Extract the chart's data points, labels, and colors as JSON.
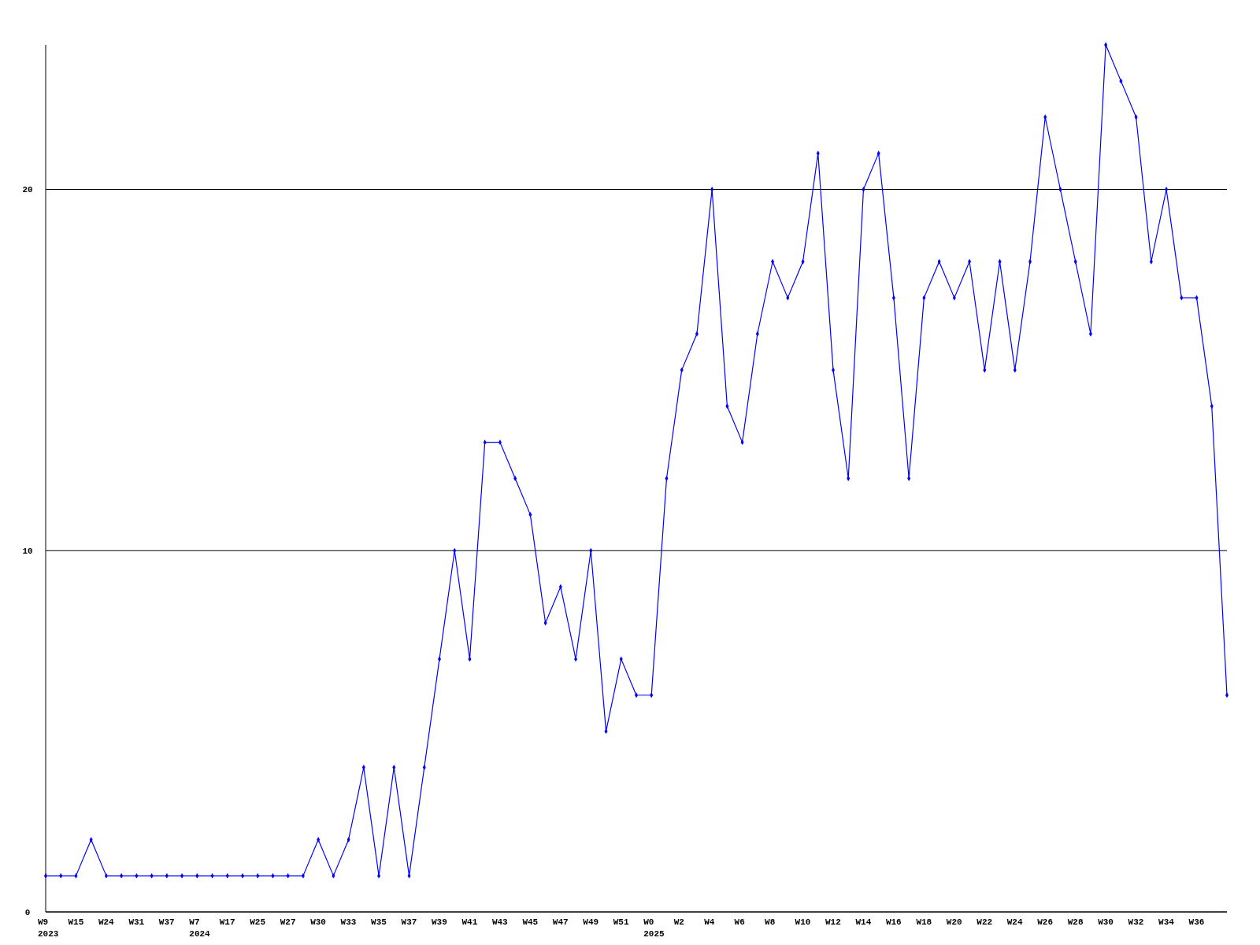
{
  "chart_data": {
    "type": "line",
    "categories": [
      "W9\n2023",
      null,
      "W15",
      null,
      "W24",
      null,
      "W31",
      null,
      "W37",
      null,
      "W7\n2024",
      null,
      "W17",
      null,
      "W25",
      null,
      "W27",
      null,
      "W30",
      null,
      "W33",
      null,
      "W35",
      null,
      "W37",
      null,
      "W39",
      null,
      "W41",
      null,
      "W43",
      null,
      "W45",
      null,
      "W47",
      null,
      "W49",
      null,
      "W51",
      null,
      "W0\n2025",
      null,
      "W2",
      null,
      "W4",
      null,
      "W6",
      null,
      "W8",
      null,
      "W10",
      null,
      "W12",
      null,
      "W14",
      null,
      "W16",
      null,
      "W18",
      null,
      "W20",
      null,
      "W22",
      null,
      "W24",
      null,
      "W26",
      null,
      "W28",
      null,
      "W30",
      null,
      "W32",
      null,
      "W34",
      null,
      "W36",
      null,
      null
    ],
    "series": [
      {
        "color": "#0000ff",
        "values": [
          1,
          1,
          1,
          2,
          1,
          1,
          1,
          1,
          1,
          1,
          1,
          1,
          1,
          1,
          1,
          1,
          1,
          1,
          2,
          1,
          2,
          4,
          1,
          4,
          1,
          4,
          7,
          10,
          7,
          13,
          13,
          12,
          11,
          8,
          9,
          7,
          10,
          5,
          7,
          6,
          6,
          12,
          15,
          16,
          20,
          14,
          13,
          16,
          18,
          17,
          18,
          21,
          15,
          12,
          20,
          21,
          17,
          12,
          17,
          18,
          17,
          18,
          15,
          18,
          15,
          18,
          22,
          20,
          18,
          16,
          24,
          23,
          22,
          18,
          20,
          17,
          17,
          14,
          6
        ]
      }
    ],
    "ylim": [
      0,
      24
    ],
    "yticks": [
      0,
      10,
      20
    ],
    "grid": "y",
    "marker": "diamond",
    "line_style": "solid"
  }
}
